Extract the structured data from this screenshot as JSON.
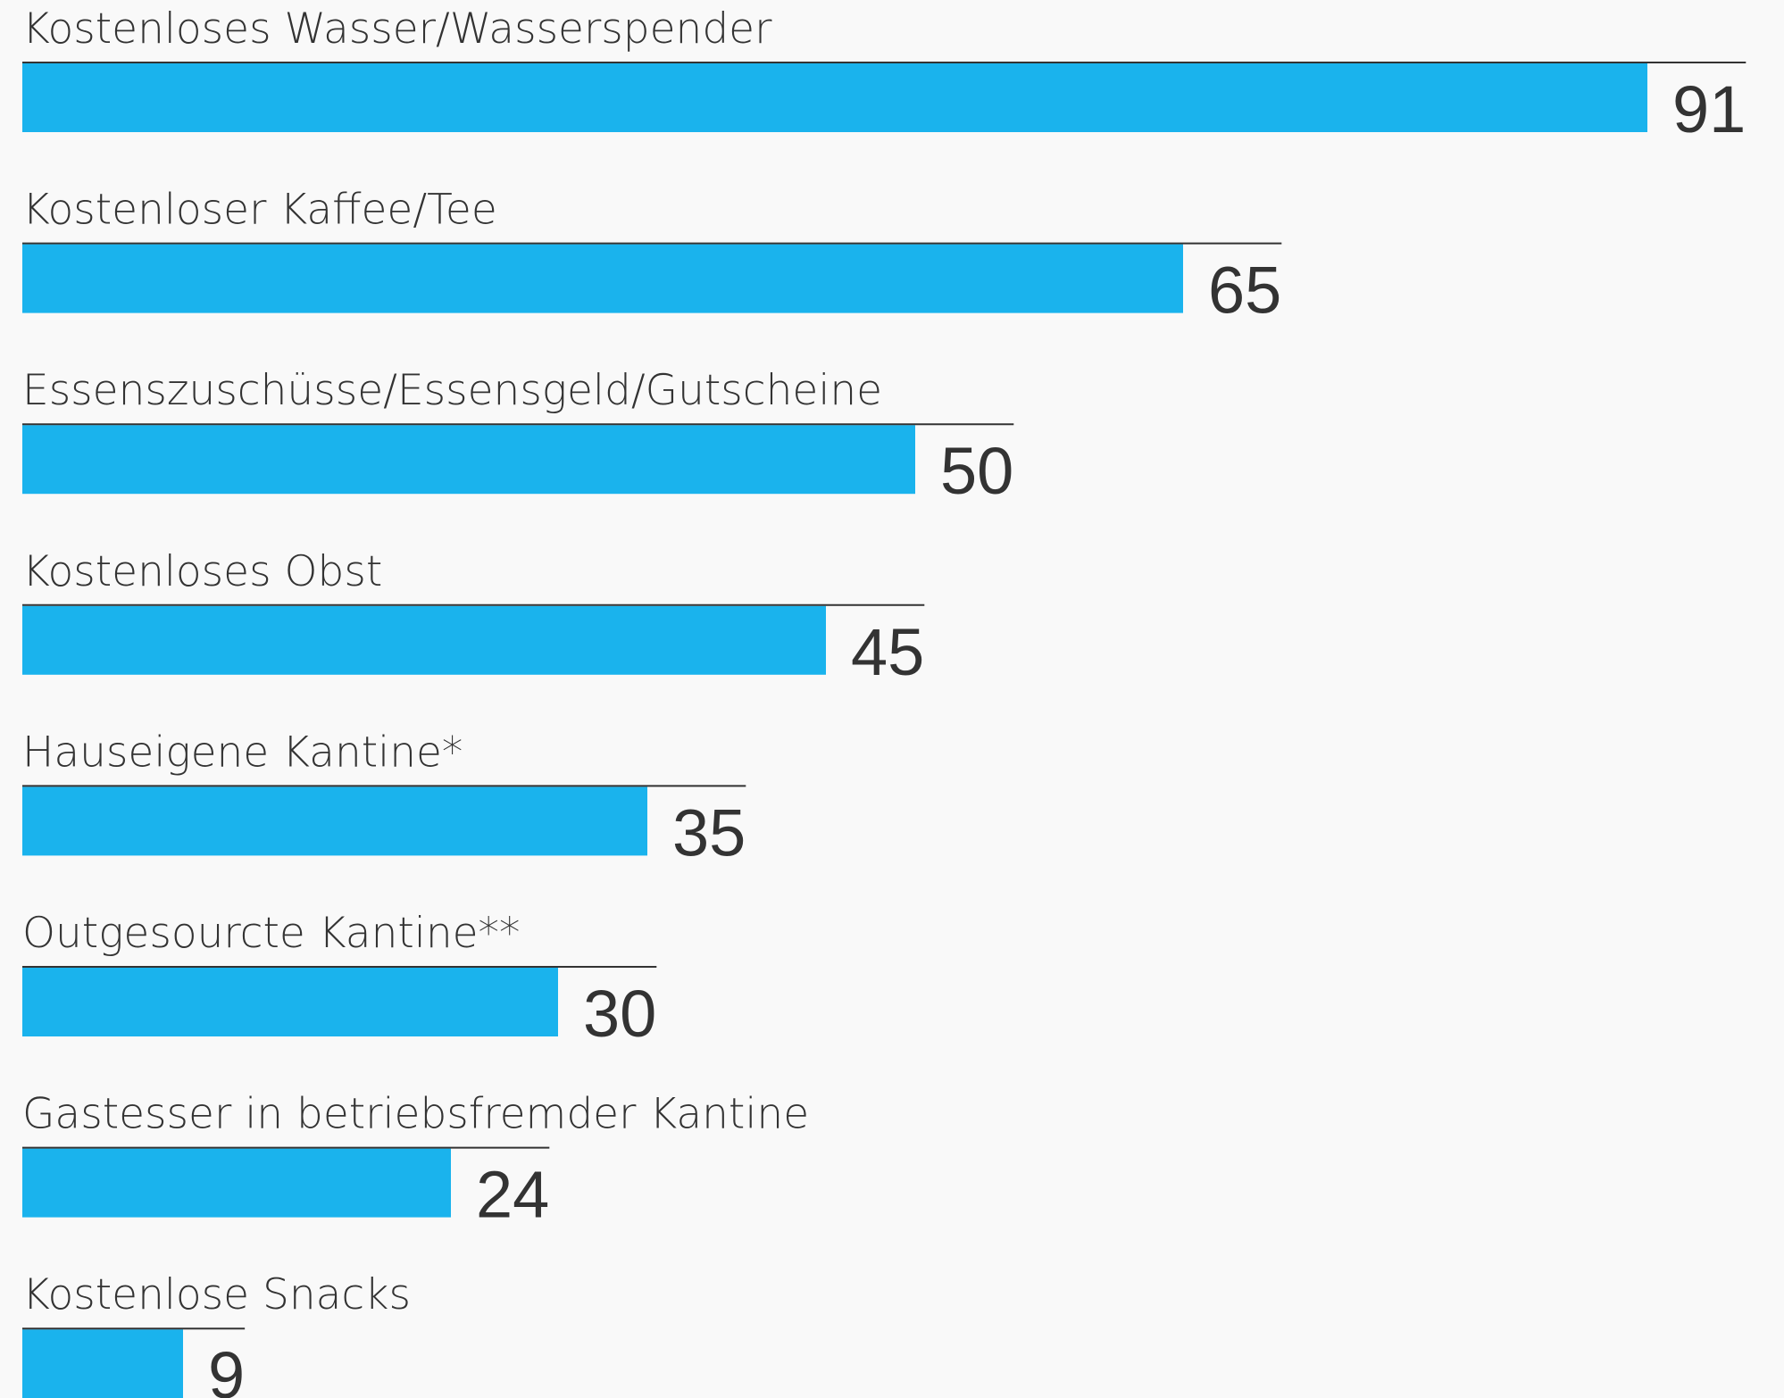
{
  "chart_data": {
    "type": "bar",
    "orientation": "horizontal",
    "color": "#1ab3ed",
    "categories": [
      "Kostenloses Wasser/Wasserspender",
      "Kostenloser Kaffee/Tee",
      "Essenszuschüsse/Essensgeld/Gutscheine",
      "Kostenloses Obst",
      "Hauseigene Kantine*",
      "Outgesourcte Kantine**",
      "Gastesser in betriebsfremder Kantine",
      "Kostenlose Snacks"
    ],
    "values": [
      91,
      65,
      50,
      45,
      35,
      30,
      24,
      9
    ]
  }
}
